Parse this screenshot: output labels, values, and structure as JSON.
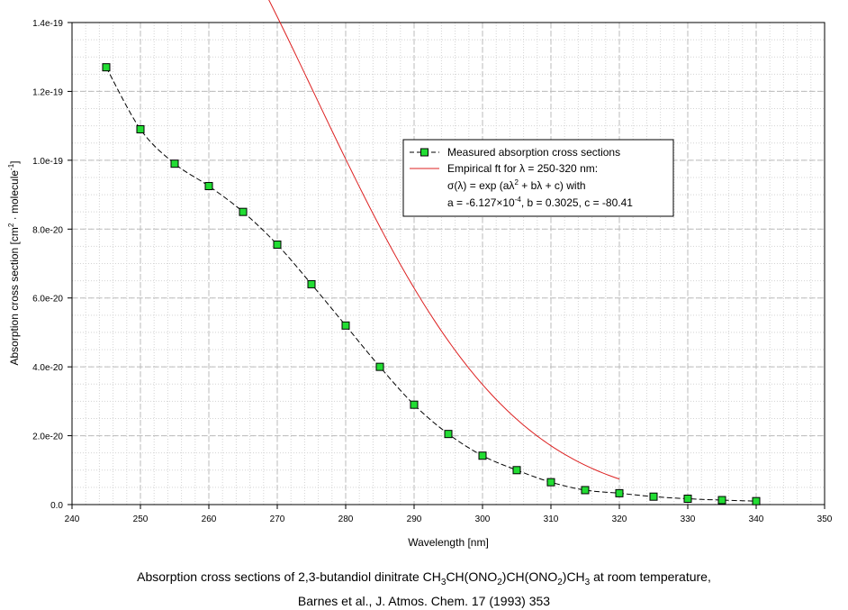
{
  "chart_data": {
    "type": "line",
    "xlabel": "Wavelength [nm]",
    "ylabel_main": "Absorption cross section [cm",
    "ylabel_sup1": "2",
    "ylabel_mid": " · molecule",
    "ylabel_sup2": "-1",
    "ylabel_end": "]",
    "xlim": [
      240,
      350
    ],
    "ylim": [
      0,
      1.4e-19
    ],
    "x_ticks": [
      240,
      250,
      260,
      270,
      280,
      290,
      300,
      310,
      320,
      330,
      340,
      350
    ],
    "x_tick_labels": [
      "240",
      "250",
      "260",
      "270",
      "280",
      "290",
      "300",
      "310",
      "320",
      "330",
      "340",
      "350"
    ],
    "y_ticks": [
      0,
      2e-20,
      4e-20,
      6e-20,
      8e-20,
      1e-19,
      1.2e-19,
      1.4e-19
    ],
    "y_tick_labels": [
      "0.0",
      "2.0e-20",
      "4.0e-20",
      "6.0e-20",
      "8.0e-20",
      "1.0e-19",
      "1.2e-19",
      "1.4e-19"
    ],
    "grid": true,
    "legend_position": "upper-right",
    "series": [
      {
        "name": "Measured absorption cross sections",
        "style": "dashed-line-square-markers",
        "color": "#000000",
        "marker_color": "#22dd33",
        "x": [
          245,
          250,
          255,
          260,
          265,
          270,
          275,
          280,
          285,
          290,
          295,
          300,
          305,
          310,
          315,
          320,
          325,
          330,
          335,
          340
        ],
        "y": [
          1.27e-19,
          1.09e-19,
          9.9e-20,
          9.25e-20,
          8.5e-20,
          7.55e-20,
          6.4e-20,
          5.2e-20,
          4e-20,
          2.9e-20,
          2.05e-20,
          1.42e-20,
          1e-20,
          6.5e-21,
          4.2e-21,
          3.3e-21,
          2.3e-21,
          1.7e-21,
          1.3e-21,
          1e-21
        ]
      },
      {
        "name": "Empirical ft for λ = 250-320 nm:",
        "style": "solid-line",
        "color": "#dd2222",
        "fit": {
          "a": -0.0006127,
          "b": 0.3025,
          "c": -80.41,
          "x_range": [
            250,
            320
          ]
        }
      }
    ],
    "legend_extra_lines": {
      "formula_a": "σ(λ) = exp (aλ",
      "formula_sup": "2",
      "formula_b": " + bλ + c) with",
      "params_a": "a = -6.127×10",
      "params_sup": "-4",
      "params_b": ", b = 0.3025, c = -80.41"
    }
  },
  "caption": {
    "line1_p1": "Absorption cross sections of 2,3-butandiol dinitrate CH",
    "sub1": "3",
    "line1_p2": "CH(ONO",
    "sub2": "2",
    "line1_p3": ")CH(ONO",
    "sub3": "2",
    "line1_p4": ")CH",
    "sub4": "3",
    "line1_p5": " at room temperature,",
    "line2": "Barnes et al., J. Atmos. Chem. 17 (1993) 353"
  }
}
